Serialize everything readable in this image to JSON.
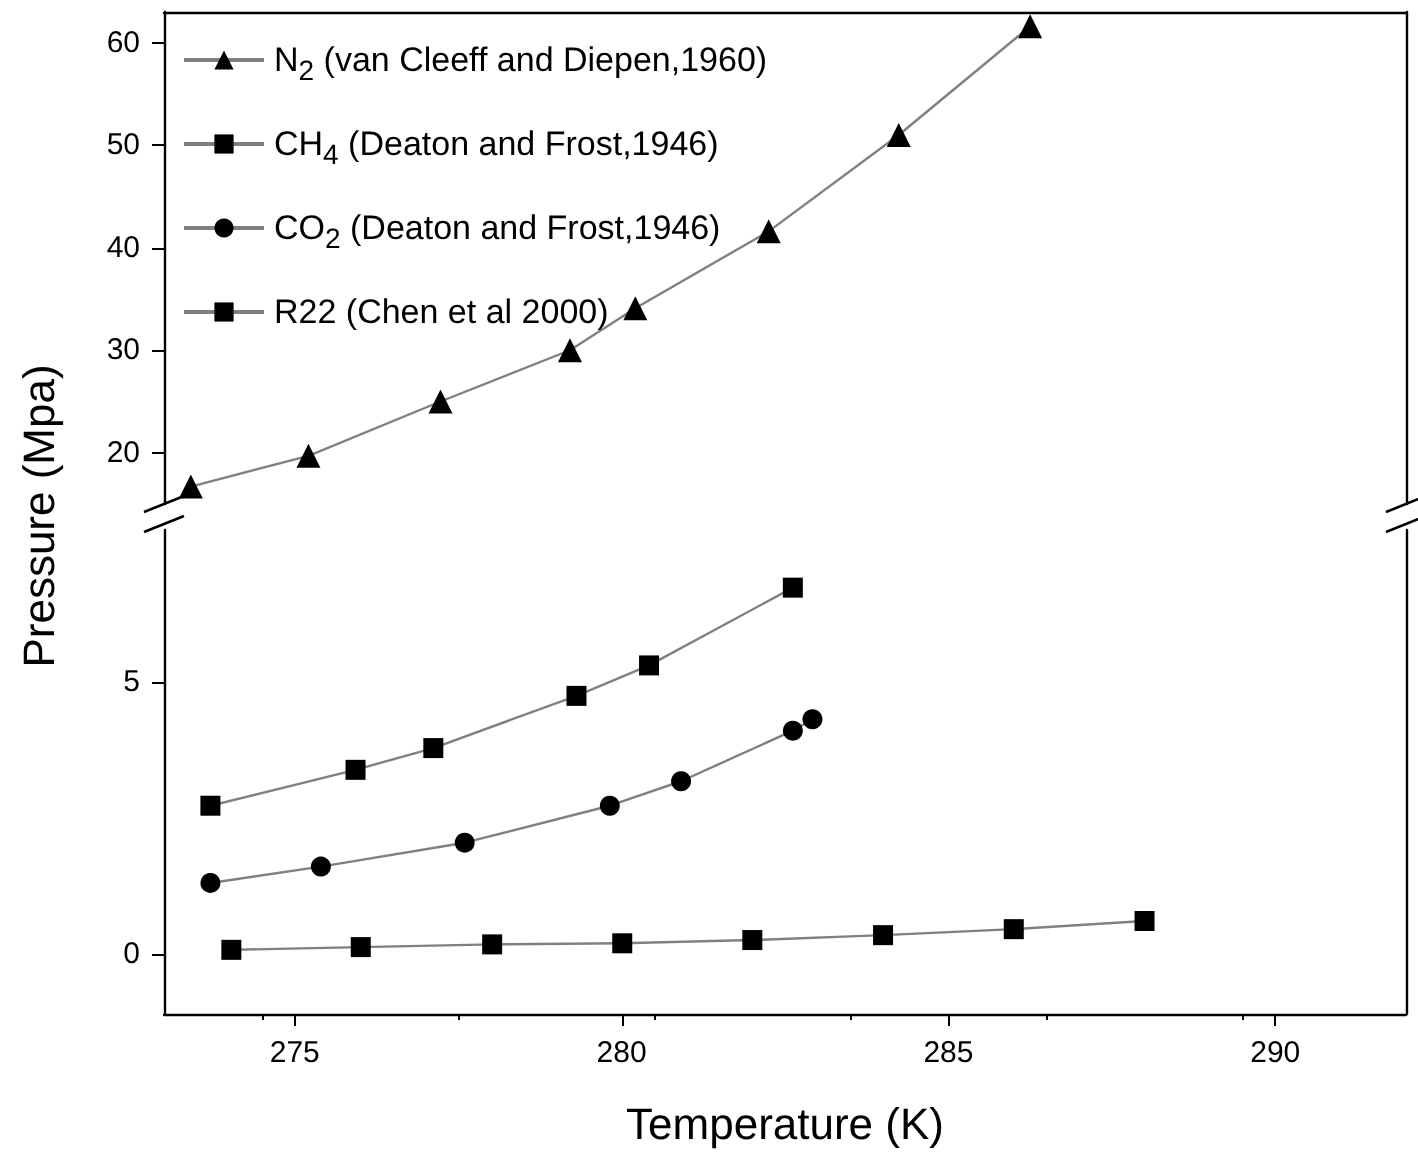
{
  "chart_data": [
    {
      "type": "line",
      "legend": "top left",
      "tick_labels": "y",
      "grid": false,
      "xlim": [
        273,
        292
      ],
      "ylim": [
        15,
        63
      ],
      "yticks": [
        20,
        30,
        40,
        50,
        60
      ],
      "series": [
        {
          "name": "N$_{2}$ (van Cleeff and Diepen,1960)",
          "color": "#000000",
          "marker": "triangle",
          "x": [
            273.41,
            275.21,
            277.23,
            279.21,
            280.21,
            282.25,
            284.24,
            286.25
          ],
          "values": [
            16.7,
            19.7,
            25.0,
            30.0,
            34.1,
            41.6,
            51.0,
            61.6
          ]
        }
      ]
    },
    {
      "type": "line",
      "legend": "top left",
      "grid": false,
      "xlabel": "Temperature (K)",
      "ylabel": "Pressure (Mpa)",
      "xlim": [
        273,
        292
      ],
      "xticks": [
        275,
        280,
        285,
        290
      ],
      "ylim": [
        -1.1,
        7.8
      ],
      "yticks": [
        0,
        5
      ],
      "series": [
        {
          "name": "CH$_{4}$ (Deaton and Frost,1946)",
          "color": "#000000",
          "marker": "square",
          "x": [
            273.71,
            275.93,
            277.12,
            279.31,
            280.42,
            282.62
          ],
          "values": [
            2.73,
            3.39,
            3.79,
            4.75,
            5.31,
            6.74
          ]
        },
        {
          "name": "CO$_{2}$ (Deaton and Frost,1946)",
          "color": "#000000",
          "marker": "circle",
          "x": [
            273.71,
            275.4,
            277.6,
            279.82,
            280.91,
            282.62,
            282.92
          ],
          "values": [
            1.31,
            1.61,
            2.05,
            2.73,
            3.18,
            4.11,
            4.32
          ]
        },
        {
          "name": "R22 (Chen et al 2000)",
          "color": "#000000",
          "marker": "square",
          "x": [
            274.03,
            276.01,
            278.02,
            280.01,
            282.0,
            284.0,
            286.0,
            288.0
          ],
          "values": [
            0.08,
            0.13,
            0.18,
            0.2,
            0.26,
            0.35,
            0.46,
            0.61
          ]
        }
      ]
    }
  ]
}
